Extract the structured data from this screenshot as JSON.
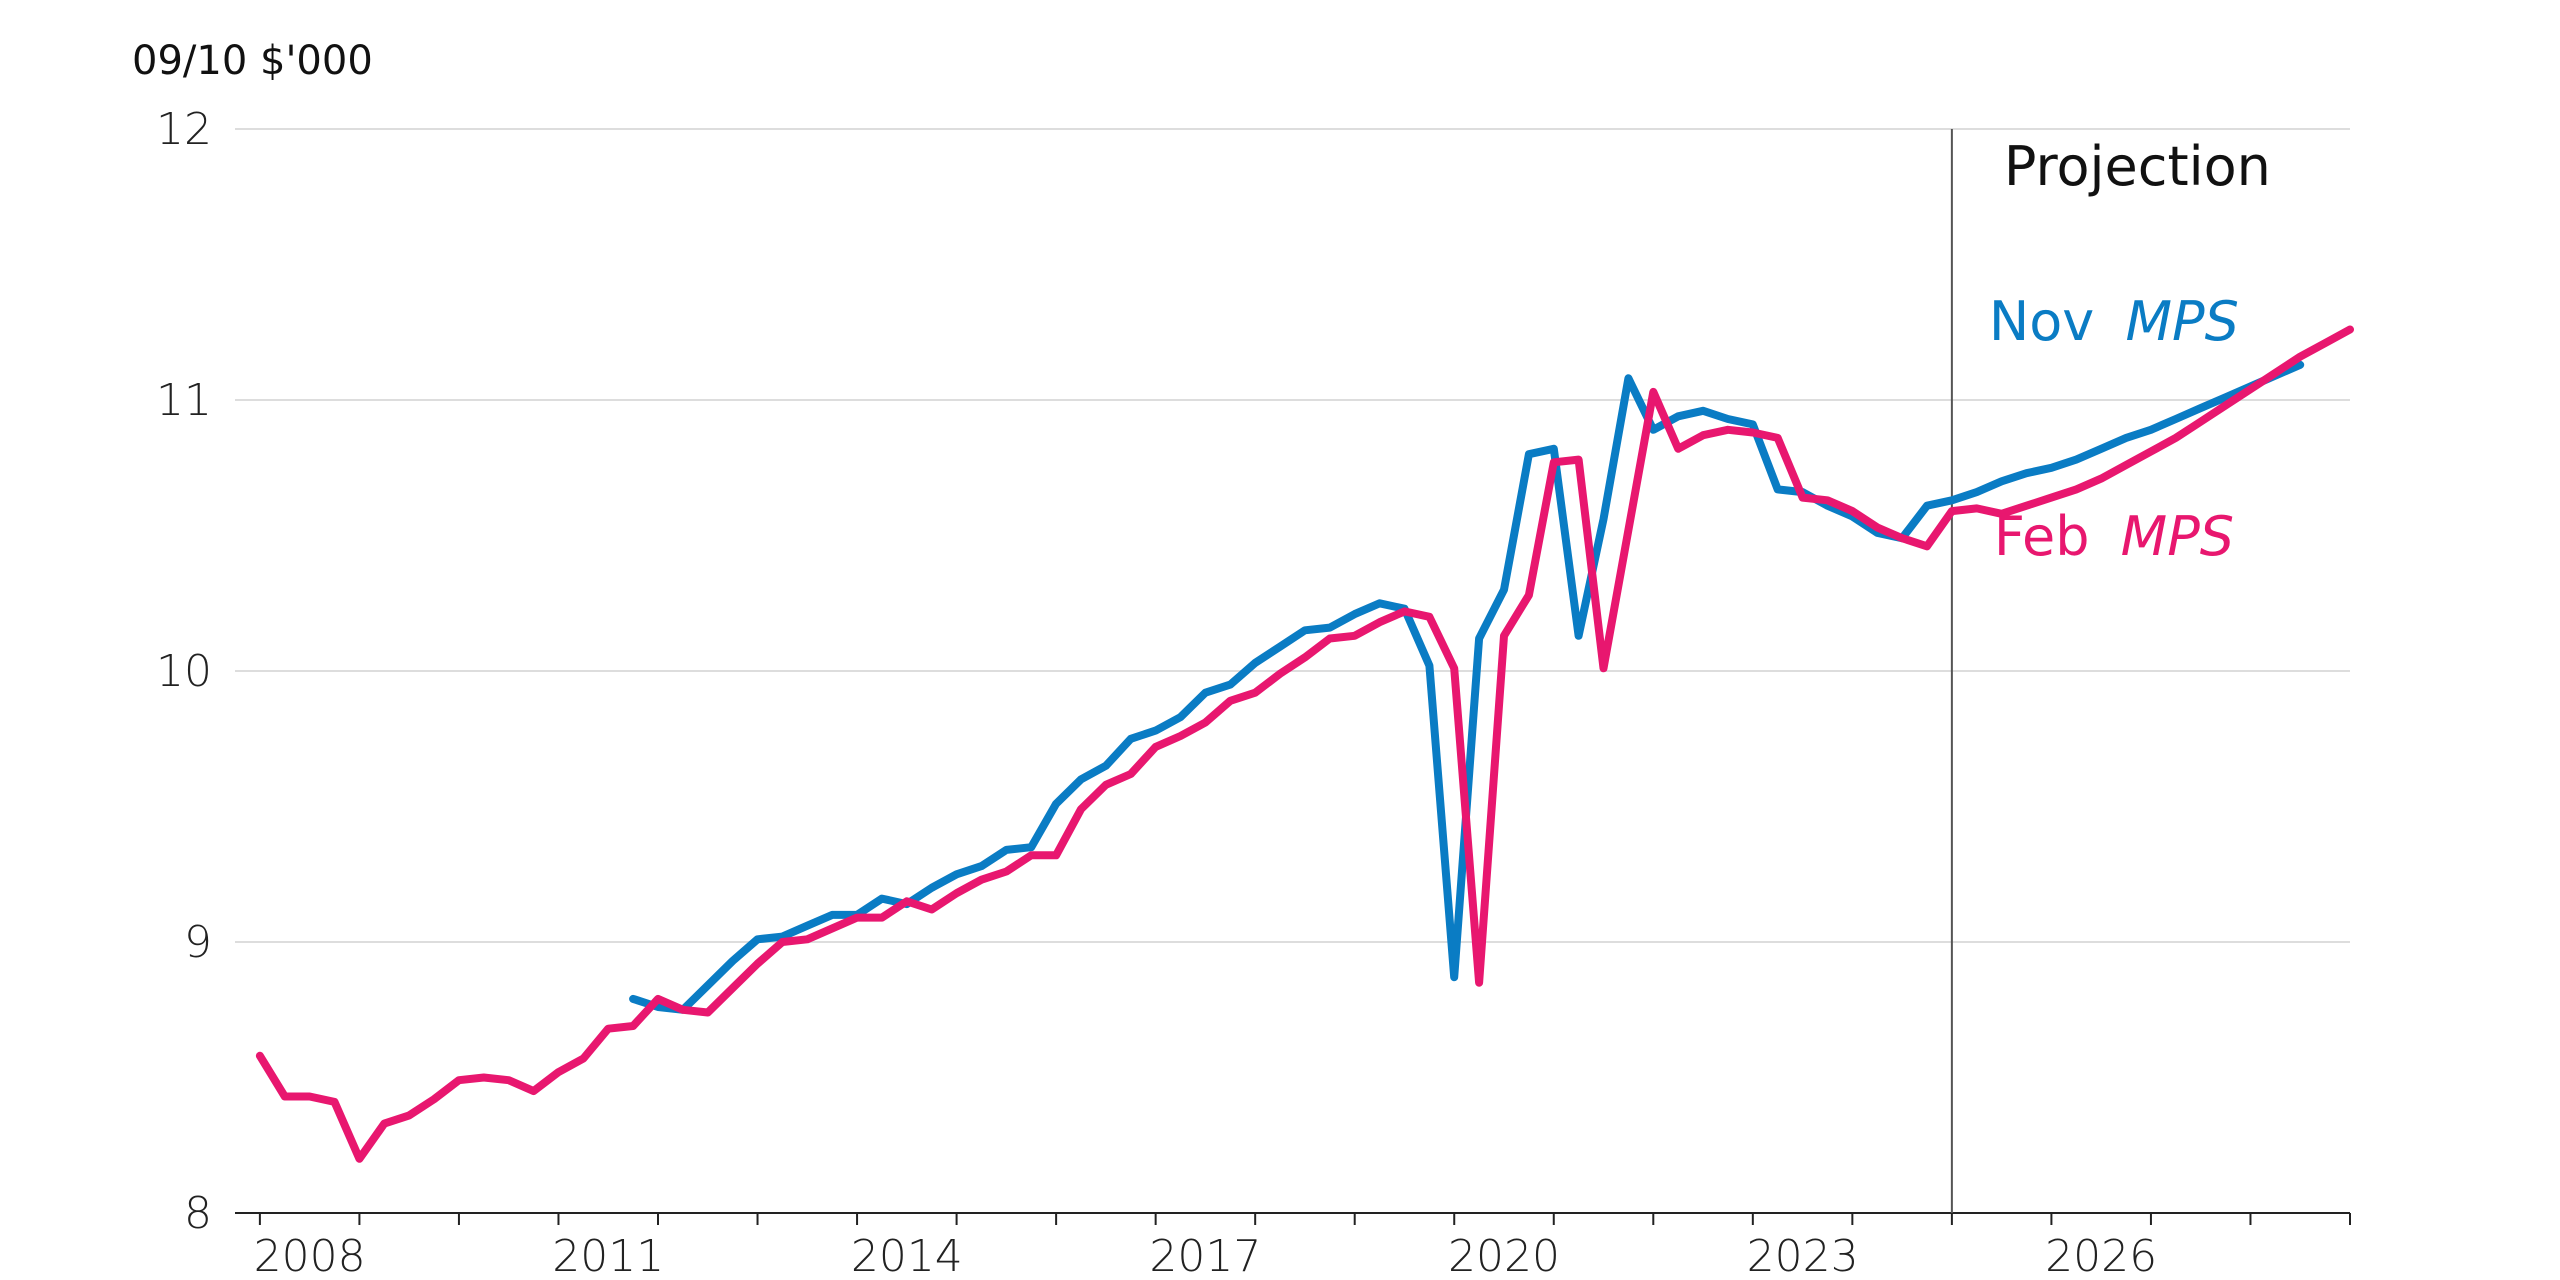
{
  "chart_data": {
    "type": "line",
    "ylabel": "09/10 $'000",
    "ylim": [
      8,
      12
    ],
    "yticks": [
      "8",
      "9",
      "10",
      "11",
      "12"
    ],
    "xlim": [
      2007.75,
      2029.0
    ],
    "xticks": [
      "2008",
      "2011",
      "2014",
      "2017",
      "2020",
      "2023",
      "2026"
    ],
    "grid": "horizontal",
    "projection_label": "Projection",
    "projection_start": 2025.0,
    "colors": {
      "nov": "#0a7cc4",
      "feb": "#e8176f",
      "axis": "#222222",
      "grid": "#dddddd"
    },
    "series": [
      {
        "name": "Nov",
        "name_suffix": "MPS",
        "x": [
          2011.75,
          2012.0,
          2012.25,
          2012.5,
          2012.75,
          2013.0,
          2013.25,
          2013.5,
          2013.75,
          2014.0,
          2014.25,
          2014.5,
          2014.75,
          2015.0,
          2015.25,
          2015.5,
          2015.75,
          2016.0,
          2016.25,
          2016.5,
          2016.75,
          2017.0,
          2017.25,
          2017.5,
          2017.75,
          2018.0,
          2018.25,
          2018.5,
          2018.75,
          2019.0,
          2019.25,
          2019.5,
          2019.75,
          2020.0,
          2020.25,
          2020.5,
          2020.75,
          2021.0,
          2021.25,
          2021.5,
          2021.75,
          2022.0,
          2022.25,
          2022.5,
          2022.75,
          2023.0,
          2023.25,
          2023.5,
          2023.75,
          2024.0,
          2024.25,
          2024.5,
          2024.75,
          2025.0,
          2025.25,
          2025.5,
          2025.75,
          2026.0,
          2026.25,
          2026.5,
          2026.75,
          2027.0,
          2027.25,
          2027.5,
          2027.75,
          2028.0,
          2028.25,
          2028.5
        ],
        "y": [
          8.79,
          8.76,
          8.75,
          8.84,
          8.93,
          9.01,
          9.02,
          9.06,
          9.1,
          9.1,
          9.16,
          9.14,
          9.2,
          9.25,
          9.28,
          9.34,
          9.35,
          9.51,
          9.6,
          9.65,
          9.75,
          9.78,
          9.83,
          9.92,
          9.95,
          10.03,
          10.09,
          10.15,
          10.16,
          10.21,
          10.25,
          10.23,
          10.02,
          8.87,
          10.12,
          10.3,
          10.8,
          10.82,
          10.13,
          10.56,
          11.08,
          10.89,
          10.94,
          10.96,
          10.93,
          10.91,
          10.67,
          10.66,
          10.61,
          10.57,
          10.51,
          10.49,
          10.61,
          10.63,
          10.66,
          10.7,
          10.73,
          10.75,
          10.78,
          10.82,
          10.86,
          10.89,
          10.93,
          10.97,
          11.01,
          11.05,
          11.09,
          11.13
        ]
      },
      {
        "name": "Feb",
        "name_suffix": "MPS",
        "x": [
          2008.0,
          2008.25,
          2008.5,
          2008.75,
          2009.0,
          2009.25,
          2009.5,
          2009.75,
          2010.0,
          2010.25,
          2010.5,
          2010.75,
          2011.0,
          2011.25,
          2011.5,
          2011.75,
          2012.0,
          2012.25,
          2012.5,
          2012.75,
          2013.0,
          2013.25,
          2013.5,
          2013.75,
          2014.0,
          2014.25,
          2014.5,
          2014.75,
          2015.0,
          2015.25,
          2015.5,
          2015.75,
          2016.0,
          2016.25,
          2016.5,
          2016.75,
          2017.0,
          2017.25,
          2017.5,
          2017.75,
          2018.0,
          2018.25,
          2018.5,
          2018.75,
          2019.0,
          2019.25,
          2019.5,
          2019.75,
          2020.0,
          2020.25,
          2020.5,
          2020.75,
          2021.0,
          2021.25,
          2021.5,
          2021.75,
          2022.0,
          2022.25,
          2022.5,
          2022.75,
          2023.0,
          2023.25,
          2023.5,
          2023.75,
          2024.0,
          2024.25,
          2024.5,
          2024.75,
          2025.0,
          2025.25,
          2025.5,
          2025.75,
          2026.0,
          2026.25,
          2026.5,
          2026.75,
          2027.0,
          2027.25,
          2027.5,
          2027.75,
          2028.0,
          2028.25,
          2028.5,
          2028.75,
          2029.0
        ],
        "y": [
          8.58,
          8.43,
          8.43,
          8.41,
          8.2,
          8.33,
          8.36,
          8.42,
          8.49,
          8.5,
          8.49,
          8.45,
          8.52,
          8.57,
          8.68,
          8.69,
          8.79,
          8.75,
          8.74,
          8.83,
          8.92,
          9.0,
          9.01,
          9.05,
          9.09,
          9.09,
          9.15,
          9.12,
          9.18,
          9.23,
          9.26,
          9.32,
          9.32,
          9.49,
          9.58,
          9.62,
          9.72,
          9.76,
          9.81,
          9.89,
          9.92,
          9.99,
          10.05,
          10.12,
          10.13,
          10.18,
          10.22,
          10.2,
          10.01,
          8.85,
          10.13,
          10.28,
          10.77,
          10.78,
          10.01,
          10.52,
          11.03,
          10.82,
          10.87,
          10.89,
          10.88,
          10.86,
          10.64,
          10.63,
          10.59,
          10.53,
          10.49,
          10.46,
          10.59,
          10.6,
          10.58,
          10.61,
          10.64,
          10.67,
          10.71,
          10.76,
          10.81,
          10.86,
          10.92,
          10.98,
          11.04,
          11.1,
          11.16,
          11.21,
          11.26
        ]
      }
    ]
  }
}
